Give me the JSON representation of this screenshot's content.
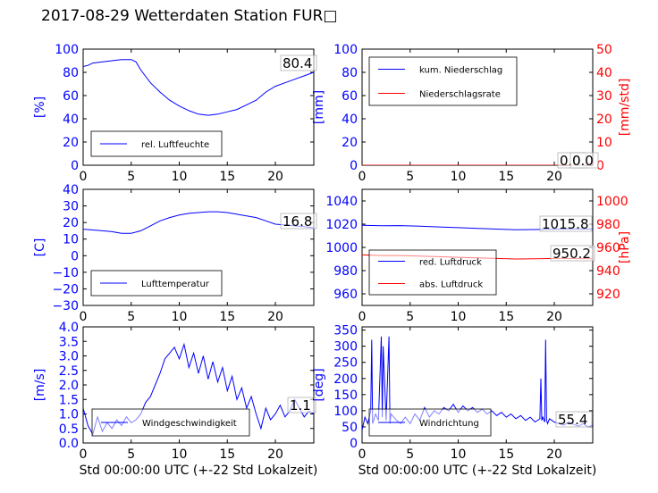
{
  "figure_title": "2017-08-29 Wetterdaten Station FUR□",
  "chart_data": [
    {
      "id": "humidity",
      "type": "line",
      "xlim": [
        0,
        24
      ],
      "xticks": [
        "0",
        "5",
        "10",
        "15",
        "20"
      ],
      "ylim": [
        0,
        100
      ],
      "yticks": [
        "0",
        "20",
        "40",
        "60",
        "80",
        "100"
      ],
      "ylabel": "[%]",
      "ytick_color": "#0000ff",
      "legend": [
        {
          "name": "rel. Luftfeuchte",
          "color": "#0000ff"
        }
      ],
      "legend_loc": "lower-left",
      "value_label": "80.4",
      "series": [
        {
          "name": "rel. Luftfeuchte",
          "color": "#0000ff",
          "axis": "left",
          "x": [
            0,
            0.5,
            1,
            2,
            3,
            4,
            5,
            5.5,
            6,
            7,
            8,
            9,
            10,
            11,
            12,
            13,
            14,
            15,
            16,
            17,
            18,
            19,
            20,
            21,
            22,
            23,
            24
          ],
          "y": [
            85,
            86,
            88,
            89,
            90,
            91,
            91,
            89,
            82,
            71,
            63,
            56,
            51,
            47,
            44,
            43,
            44,
            46,
            48,
            52,
            56,
            63,
            68,
            71,
            74,
            77,
            80
          ]
        }
      ]
    },
    {
      "id": "precip",
      "type": "line",
      "xlim": [
        0,
        24
      ],
      "xticks": [
        "0",
        "5",
        "10",
        "15",
        "20"
      ],
      "ylim": [
        0,
        100
      ],
      "yticks": [
        "0",
        "20",
        "40",
        "60",
        "80",
        "100"
      ],
      "ylabel": "[mm]",
      "ytick_color": "#0000ff",
      "y2lim": [
        0,
        50
      ],
      "y2ticks": [
        "0",
        "10",
        "20",
        "30",
        "40",
        "50"
      ],
      "y2label": "[mm/std]",
      "y2tick_color": "#ff0000",
      "legend": [
        {
          "name": "kum. Niederschlag",
          "color": "#0000ff"
        },
        {
          "name": "Niederschlagsrate",
          "color": "#ff0000"
        }
      ],
      "legend_loc": "upper-left",
      "value_label": "0.0",
      "value_label2": "0.0",
      "series": [
        {
          "name": "kum. Niederschlag",
          "color": "#0000ff",
          "axis": "left",
          "x": [
            0,
            24
          ],
          "y": [
            0,
            0
          ]
        },
        {
          "name": "Niederschlagsrate",
          "color": "#ff0000",
          "axis": "right",
          "x": [
            0,
            24
          ],
          "y": [
            0,
            0
          ]
        }
      ]
    },
    {
      "id": "temp",
      "type": "line",
      "xlim": [
        0,
        24
      ],
      "xticks": [
        "0",
        "5",
        "10",
        "15",
        "20"
      ],
      "ylim": [
        -30,
        40
      ],
      "yticks": [
        "−30",
        "−20",
        "−10",
        "0",
        "10",
        "20",
        "30",
        "40"
      ],
      "ylabel": "[C]",
      "ytick_color": "#0000ff",
      "legend": [
        {
          "name": "Lufttemperatur",
          "color": "#0000ff"
        }
      ],
      "legend_loc": "lower-left",
      "value_label": "16.8",
      "series": [
        {
          "name": "Lufttemperatur",
          "color": "#0000ff",
          "axis": "left",
          "x": [
            0,
            1,
            2,
            3,
            4,
            5,
            6,
            7,
            8,
            9,
            10,
            11,
            12,
            13,
            14,
            15,
            16,
            17,
            18,
            19,
            20,
            21,
            22,
            23,
            24
          ],
          "y": [
            16,
            15.5,
            15,
            14.5,
            13.5,
            13.5,
            15,
            18,
            21,
            23,
            24.5,
            25.5,
            26,
            26.5,
            26.5,
            26,
            25,
            24,
            23,
            21,
            19,
            18.5,
            18,
            17.5,
            16.8
          ]
        }
      ]
    },
    {
      "id": "pressure",
      "type": "line",
      "xlim": [
        0,
        24
      ],
      "xticks": [
        "0",
        "5",
        "10",
        "15",
        "20"
      ],
      "ylim": [
        950,
        1050
      ],
      "yticks": [
        "960",
        "980",
        "1000",
        "1020",
        "1040"
      ],
      "ytick_color": "#0000ff",
      "y2lim": [
        910,
        1010
      ],
      "y2ticks": [
        "920",
        "940",
        "960",
        "980",
        "1000"
      ],
      "y2label": "[hPa]",
      "y2tick_color": "#ff0000",
      "legend": [
        {
          "name": "red. Luftdruck",
          "color": "#0000ff"
        },
        {
          "name": "abs. Luftdruck",
          "color": "#ff0000"
        }
      ],
      "legend_loc": "lower-left",
      "value_label": "1015.8",
      "value_label2": "950.2",
      "series": [
        {
          "name": "red. Luftdruck",
          "color": "#0000ff",
          "axis": "left",
          "x": [
            0,
            2,
            4,
            6,
            8,
            10,
            12,
            14,
            16,
            18,
            20,
            22,
            24
          ],
          "y": [
            1019,
            1018.6,
            1018.8,
            1018.2,
            1017.6,
            1017.0,
            1016.4,
            1015.8,
            1015.2,
            1015.4,
            1015.8,
            1015.9,
            1015.8
          ]
        },
        {
          "name": "abs. Luftdruck",
          "color": "#ff0000",
          "axis": "right",
          "x": [
            0,
            2,
            4,
            6,
            8,
            10,
            12,
            14,
            16,
            18,
            20,
            22,
            24
          ],
          "y": [
            953.5,
            953,
            953,
            952.5,
            952,
            951.5,
            951,
            950.5,
            950,
            950.2,
            950.5,
            950.4,
            950.2
          ]
        }
      ]
    },
    {
      "id": "wind",
      "type": "line",
      "xlim": [
        0,
        24
      ],
      "xticks": [
        "0",
        "5",
        "10",
        "15",
        "20"
      ],
      "xlabel": "Std 00:00:00 UTC (+-22 Std Lokalzeit)",
      "ylim": [
        0,
        4
      ],
      "yticks": [
        "0.0",
        "0.5",
        "1.0",
        "1.5",
        "2.0",
        "2.5",
        "3.0",
        "3.5",
        "4.0"
      ],
      "ylabel": "[m/s]",
      "ytick_color": "#0000ff",
      "legend": [
        {
          "name": "Windgeschwindigkeit",
          "color": "#0000ff"
        }
      ],
      "legend_loc": "lower-center",
      "value_label": "1.1",
      "series": [
        {
          "name": "Windgeschwindigkeit",
          "color": "#0000ff",
          "axis": "left",
          "x": [
            0,
            0.5,
            1,
            1.5,
            2,
            2.5,
            3,
            3.5,
            4,
            4.5,
            5,
            5.5,
            6,
            6.5,
            7,
            7.5,
            8,
            8.5,
            9,
            9.5,
            10,
            10.5,
            11,
            11.5,
            12,
            12.5,
            13,
            13.5,
            14,
            14.5,
            15,
            15.5,
            16,
            16.5,
            17,
            17.5,
            18,
            18.5,
            19,
            19.5,
            20,
            20.5,
            21,
            21.5,
            22,
            22.5,
            23,
            23.5,
            24
          ],
          "y": [
            1.2,
            0.6,
            0.3,
            0.9,
            0.4,
            0.7,
            0.5,
            0.8,
            0.6,
            0.9,
            0.7,
            0.8,
            1.0,
            1.4,
            1.6,
            2.0,
            2.4,
            2.9,
            3.1,
            3.3,
            2.9,
            3.4,
            2.6,
            3.1,
            2.4,
            3.0,
            2.2,
            2.8,
            2.1,
            2.6,
            1.8,
            2.3,
            1.5,
            1.9,
            1.2,
            1.6,
            1.0,
            0.5,
            1.2,
            0.8,
            1.0,
            1.3,
            0.9,
            1.1,
            1.5,
            1.2,
            0.9,
            1.1,
            1.0
          ]
        }
      ]
    },
    {
      "id": "direction",
      "type": "line",
      "xlim": [
        0,
        24
      ],
      "xticks": [
        "0",
        "5",
        "10",
        "15",
        "20"
      ],
      "xlabel": "Std 00:00:00 UTC (+-22 Std Lokalzeit)",
      "ylim": [
        0,
        360
      ],
      "yticks": [
        "0",
        "50",
        "100",
        "150",
        "200",
        "250",
        "300",
        "350"
      ],
      "ylabel": "[deg]",
      "ytick_color": "#0000ff",
      "legend": [
        {
          "name": "Windrichtung",
          "color": "#0000ff"
        }
      ],
      "legend_loc": "lower-center",
      "value_label": "55.4",
      "series": [
        {
          "name": "Windrichtung",
          "color": "#0000ff",
          "axis": "left",
          "x": [
            0,
            0.3,
            0.6,
            0.9,
            1.0,
            1.1,
            1.4,
            1.7,
            2.0,
            2.1,
            2.2,
            2.5,
            2.8,
            2.9,
            3.0,
            3.3,
            3.6,
            4.0,
            4.5,
            5,
            5.5,
            6,
            6.5,
            7,
            7.5,
            8,
            8.5,
            9,
            9.5,
            10,
            10.5,
            11,
            11.5,
            12,
            12.5,
            13,
            13.5,
            14,
            14.5,
            15,
            15.5,
            16,
            16.5,
            17,
            17.5,
            18,
            18.5,
            18.6,
            18.7,
            18.8,
            19,
            19.1,
            19.2,
            19.3,
            19.5,
            20,
            20.5,
            21,
            21.5,
            22,
            22.5,
            23,
            23.5,
            24
          ],
          "y": [
            40,
            80,
            60,
            100,
            320,
            60,
            90,
            70,
            330,
            80,
            300,
            70,
            330,
            60,
            90,
            80,
            70,
            60,
            80,
            60,
            90,
            70,
            110,
            80,
            100,
            90,
            110,
            100,
            120,
            95,
            115,
            100,
            110,
            95,
            105,
            90,
            100,
            85,
            95,
            80,
            90,
            75,
            85,
            70,
            80,
            65,
            75,
            200,
            70,
            80,
            65,
            320,
            70,
            60,
            75,
            65,
            60,
            55,
            65,
            58,
            52,
            60,
            50,
            55
          ]
        }
      ]
    }
  ]
}
